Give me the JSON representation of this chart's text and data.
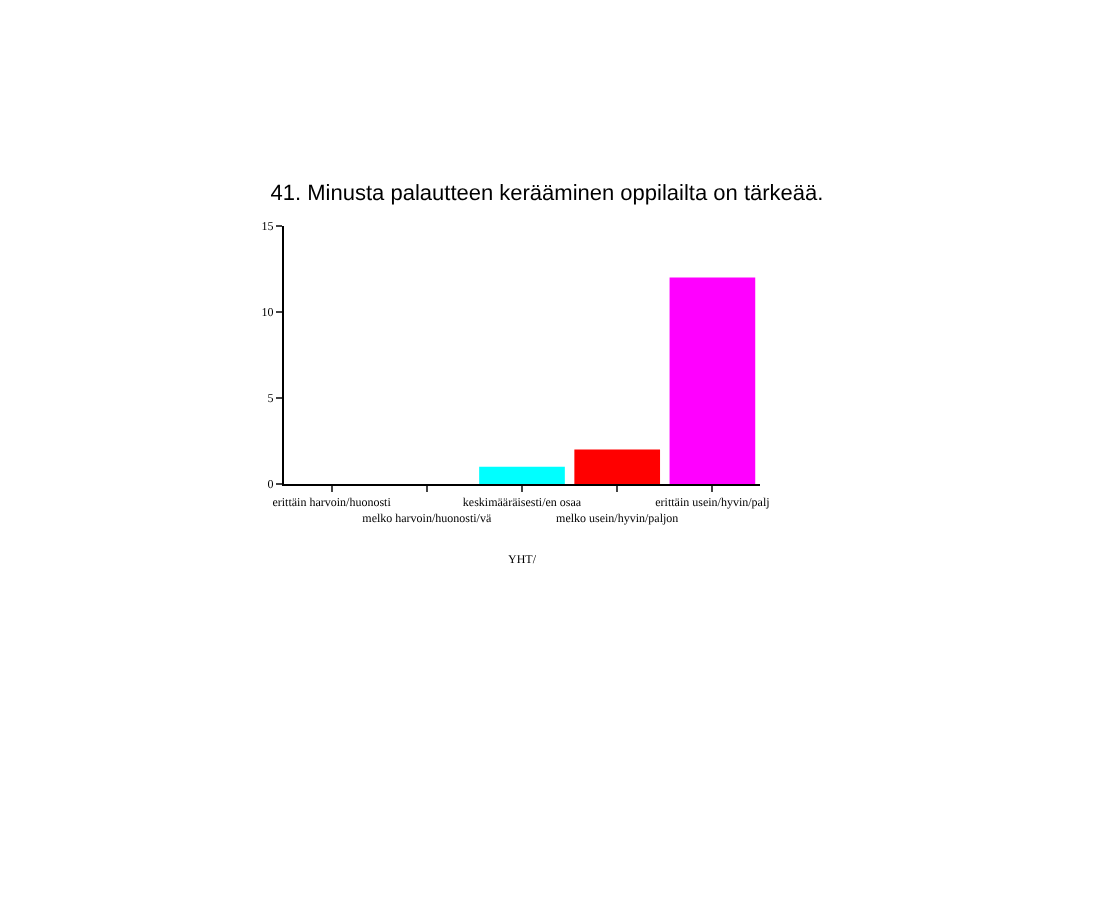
{
  "chart_data": {
    "type": "bar",
    "title": "41. Minusta palautteen kerääminen oppilailta on tärkeää.",
    "xlabel": "YHT/",
    "categories": [
      "erittäin harvoin/huonosti",
      "melko harvoin/huonosti/vä",
      "keskimääräisesti/en osaa",
      "melko usein/hyvin/paljon",
      "erittäin usein/hyvin/palj"
    ],
    "values": [
      0,
      0,
      1,
      2,
      12
    ],
    "colors": [
      null,
      null,
      "#00ffff",
      "#ff0000",
      "#ff00ff"
    ],
    "ylim": [
      0,
      15
    ],
    "yticks": [
      0,
      5,
      10,
      15
    ],
    "grid": false
  }
}
